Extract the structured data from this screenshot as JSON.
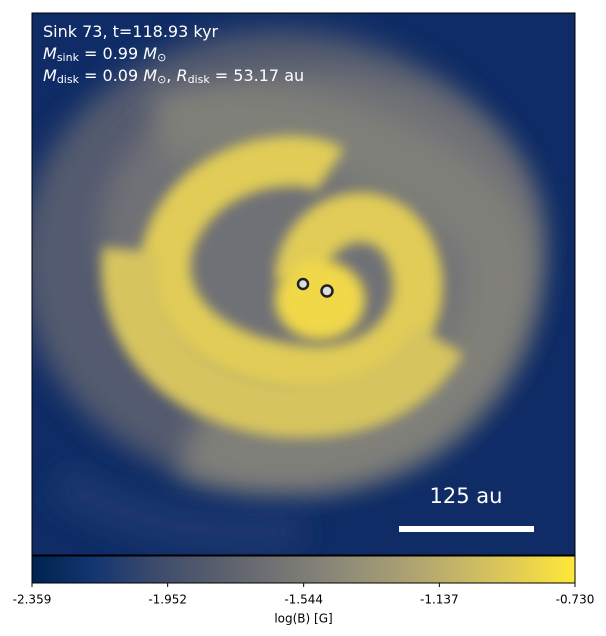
{
  "chart_data": {
    "type": "image",
    "annotations": [
      [
        "Sink 73, t=118.93 kyr"
      ],
      [
        "M",
        "sink",
        " = 0.99 ",
        "M",
        "⊙"
      ],
      [
        "M",
        "disk",
        " = 0.09 ",
        "M",
        "⊙",
        ", ",
        "R",
        "disk",
        " = 53.17 au"
      ]
    ],
    "scale_bar": "125 au",
    "colorbar": {
      "label": "log(B) [G]",
      "clim": [
        -2.359,
        -0.73
      ],
      "ticks": [
        -2.359,
        -1.952,
        -1.544,
        -1.137,
        {
          "value": -0.73,
          "label": "-0.730"
        }
      ],
      "colors": [
        "#00224e",
        "#123570",
        "#3b496c",
        "#575d6d",
        "#707173",
        "#8a8779",
        "#a59c74",
        "#c3b369",
        "#e1cc55",
        "#fee838"
      ]
    }
  }
}
